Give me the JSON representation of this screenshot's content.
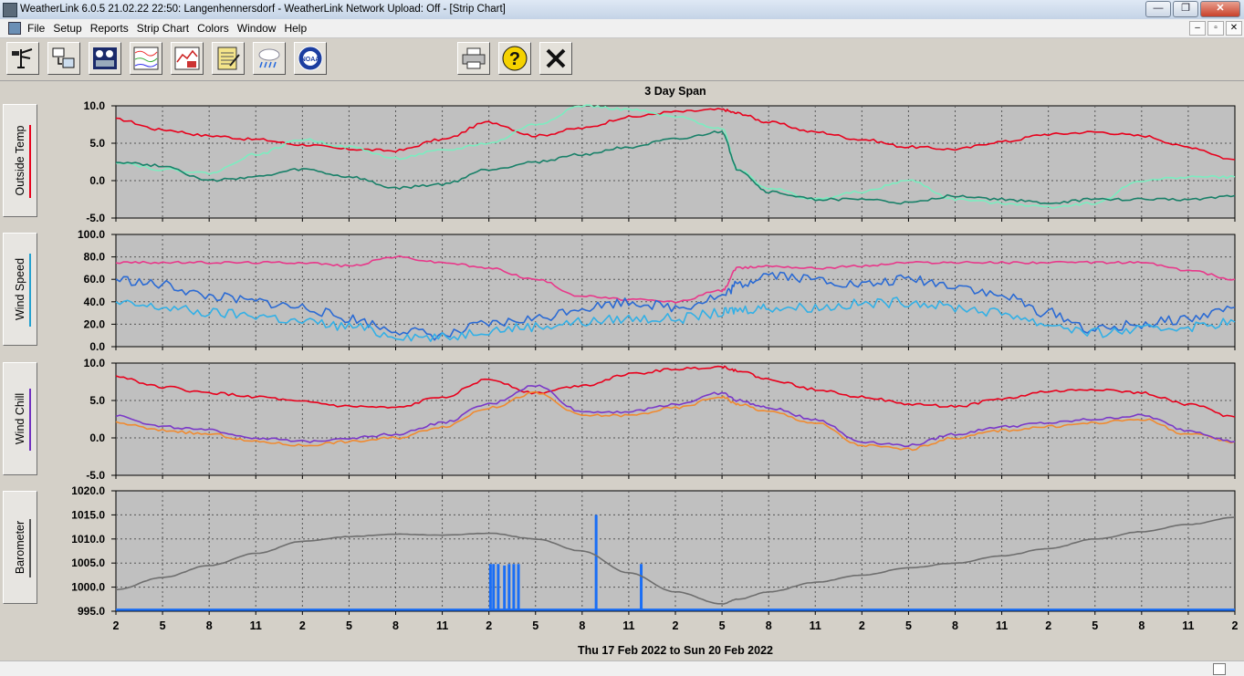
{
  "window": {
    "title": "WeatherLink 6.0.5  21.02.22  22:50: Langenhennersdorf - WeatherLink Network Upload: Off - [Strip Chart]",
    "controls": {
      "minimize": "—",
      "restore": "❐",
      "close": "✕"
    }
  },
  "menu": {
    "items": [
      "File",
      "Setup",
      "Reports",
      "Strip Chart",
      "Colors",
      "Window",
      "Help"
    ],
    "mdi_controls": [
      "–",
      "▫",
      "✕"
    ]
  },
  "toolbar": {
    "buttons": [
      {
        "name": "station-icon"
      },
      {
        "name": "download-icon"
      },
      {
        "name": "bulletin-icon"
      },
      {
        "name": "strip-chart-icon"
      },
      {
        "name": "plot-icon"
      },
      {
        "name": "notes-icon"
      },
      {
        "name": "weather-icon"
      },
      {
        "name": "noaa-icon",
        "text": "NOAA"
      },
      {
        "name": "print-icon"
      },
      {
        "name": "help-icon",
        "text": "?"
      },
      {
        "name": "close-icon",
        "text": "✕"
      }
    ]
  },
  "chart_data": {
    "type": "line",
    "title": "3 Day Span",
    "date_range": "Thu 17 Feb 2022  to  Sun 20 Feb 2022",
    "hours_span": [
      2,
      74
    ],
    "x_tick_labels": [
      "2",
      "5",
      "8",
      "11",
      "2",
      "5",
      "8",
      "11",
      "2",
      "5",
      "8",
      "11",
      "2",
      "5",
      "8",
      "11",
      "2",
      "5",
      "8",
      "11",
      "2",
      "5",
      "8",
      "11",
      "2"
    ],
    "colors": {
      "grid": "#555555",
      "background": "#c0c0c0"
    },
    "panels": [
      {
        "label": "Outside Temp",
        "label_color": "#e8001c",
        "ylim": [
          -5.0,
          10.0
        ],
        "yticks": [
          "10.0",
          "5.0",
          "0.0",
          "-5.0"
        ],
        "series": [
          {
            "color": "#e8001c",
            "x": [
              2,
              5,
              8,
              11,
              14,
              17,
              20,
              23,
              26,
              29,
              32,
              35,
              38,
              41,
              42,
              44,
              47,
              50,
              53,
              56,
              59,
              62,
              65,
              68,
              71,
              74
            ],
            "y": [
              8.2,
              6.8,
              6.0,
              5.5,
              4.8,
              4.2,
              4.0,
              5.5,
              7.8,
              6.0,
              7.0,
              8.5,
              9.2,
              9.5,
              9.0,
              7.8,
              6.5,
              5.5,
              4.5,
              4.2,
              5.2,
              6.2,
              6.5,
              6.0,
              4.5,
              2.8
            ]
          },
          {
            "color": "#7bedc0",
            "x": [
              2,
              5,
              8,
              11,
              14,
              17,
              20,
              23,
              26,
              29,
              32,
              35,
              38,
              41,
              42,
              44,
              47,
              50,
              53,
              56,
              59,
              62,
              65,
              68,
              71,
              74
            ],
            "y": [
              2.5,
              1.5,
              1.0,
              3.5,
              5.5,
              4.5,
              3.0,
              4.0,
              5.0,
              7.5,
              10.0,
              9.5,
              8.5,
              7.0,
              1.5,
              -1.0,
              -2.5,
              -1.5,
              0.0,
              -2.5,
              -3.0,
              -3.5,
              -3.0,
              0.0,
              0.5,
              0.5
            ]
          },
          {
            "color": "#188068",
            "x": [
              2,
              5,
              8,
              11,
              14,
              17,
              20,
              23,
              26,
              29,
              32,
              35,
              38,
              41,
              42,
              44,
              47,
              50,
              53,
              56,
              59,
              62,
              65,
              68,
              71,
              74
            ],
            "y": [
              2.5,
              2.0,
              0.0,
              0.5,
              1.5,
              0.5,
              -1.0,
              -0.5,
              1.5,
              2.5,
              3.5,
              4.5,
              5.5,
              6.5,
              1.5,
              -1.5,
              -2.5,
              -2.5,
              -3.0,
              -2.0,
              -2.5,
              -3.0,
              -2.5,
              -2.5,
              -2.5,
              -2.0
            ]
          }
        ]
      },
      {
        "label": "Wind Speed",
        "label_color": "#22a0d0",
        "ylim": [
          0.0,
          100.0
        ],
        "yticks": [
          "100.0",
          "80.0",
          "60.0",
          "40.0",
          "20.0",
          "0.0"
        ],
        "series": [
          {
            "color": "#e8388a",
            "x": [
              2,
              5,
              8,
              11,
              14,
              17,
              20,
              23,
              26,
              29,
              32,
              35,
              38,
              41,
              42,
              44,
              47,
              50,
              53,
              56,
              59,
              62,
              65,
              68,
              71,
              74
            ],
            "y": [
              75,
              75,
              75,
              75,
              75,
              72,
              80,
              75,
              70,
              60,
              45,
              42,
              40,
              50,
              70,
              72,
              70,
              72,
              75,
              75,
              75,
              75,
              75,
              75,
              68,
              60
            ]
          },
          {
            "color": "#2a6ad4",
            "x": [
              2,
              5,
              8,
              11,
              14,
              17,
              20,
              23,
              26,
              29,
              32,
              35,
              38,
              41,
              42,
              44,
              47,
              50,
              53,
              56,
              59,
              62,
              65,
              68,
              71,
              74
            ],
            "y": [
              60,
              55,
              45,
              40,
              35,
              25,
              15,
              10,
              20,
              25,
              35,
              40,
              35,
              45,
              55,
              65,
              60,
              55,
              60,
              55,
              45,
              30,
              15,
              20,
              25,
              35
            ]
          },
          {
            "color": "#32b0e6",
            "x": [
              2,
              5,
              8,
              11,
              14,
              17,
              20,
              23,
              26,
              29,
              32,
              35,
              38,
              41,
              42,
              44,
              47,
              50,
              53,
              56,
              59,
              62,
              65,
              68,
              71,
              74
            ],
            "y": [
              38,
              35,
              30,
              28,
              22,
              18,
              10,
              8,
              15,
              18,
              22,
              25,
              25,
              30,
              33,
              35,
              35,
              38,
              40,
              35,
              30,
              20,
              12,
              15,
              18,
              22
            ]
          }
        ]
      },
      {
        "label": "Wind Chill",
        "label_color": "#7030c0",
        "ylim": [
          -5.0,
          10.0
        ],
        "yticks": [
          "10.0",
          "5.0",
          "0.0",
          "-5.0"
        ],
        "series": [
          {
            "color": "#e8001c",
            "x": [
              2,
              5,
              8,
              11,
              14,
              17,
              20,
              23,
              26,
              29,
              32,
              35,
              38,
              41,
              42,
              44,
              47,
              50,
              53,
              56,
              59,
              62,
              65,
              68,
              71,
              74
            ],
            "y": [
              8.2,
              6.8,
              6.0,
              5.5,
              4.8,
              4.2,
              4.0,
              5.5,
              7.8,
              6.0,
              7.0,
              8.5,
              9.2,
              9.5,
              9.0,
              7.8,
              6.5,
              5.5,
              4.5,
              4.2,
              5.2,
              6.2,
              6.5,
              6.0,
              4.5,
              2.8
            ]
          },
          {
            "color": "#f08a30",
            "x": [
              2,
              5,
              8,
              11,
              14,
              17,
              20,
              23,
              26,
              29,
              32,
              35,
              38,
              41,
              42,
              44,
              47,
              50,
              53,
              56,
              59,
              62,
              65,
              68,
              71,
              74
            ],
            "y": [
              2.0,
              1.0,
              0.5,
              -0.5,
              -1.0,
              -0.5,
              0.0,
              1.5,
              4.0,
              6.0,
              3.0,
              3.0,
              4.0,
              5.5,
              4.5,
              3.5,
              2.0,
              -1.0,
              -1.5,
              0.0,
              1.0,
              1.5,
              2.0,
              2.5,
              0.5,
              -0.5
            ]
          },
          {
            "color": "#7a38c8",
            "x": [
              2,
              5,
              8,
              11,
              14,
              17,
              20,
              23,
              26,
              29,
              32,
              35,
              38,
              41,
              42,
              44,
              47,
              50,
              53,
              56,
              59,
              62,
              65,
              68,
              71,
              74
            ],
            "y": [
              3.0,
              1.5,
              1.0,
              0.0,
              -0.5,
              0.0,
              0.5,
              2.0,
              4.5,
              7.0,
              3.5,
              3.5,
              4.5,
              6.0,
              5.0,
              4.0,
              2.5,
              -0.5,
              -1.0,
              0.5,
              1.5,
              2.0,
              2.5,
              3.0,
              1.0,
              -0.5
            ]
          }
        ]
      },
      {
        "label": "Barometer",
        "label_color": "#555555",
        "ylim": [
          995.0,
          1020.0
        ],
        "yticks": [
          "1020.0",
          "1015.0",
          "1010.0",
          "1005.0",
          "1000.0",
          "995.0"
        ],
        "series": [
          {
            "color": "#6e6e6e",
            "x": [
              2,
              5,
              8,
              11,
              14,
              17,
              20,
              23,
              26,
              29,
              32,
              35,
              38,
              41,
              42,
              44,
              47,
              50,
              53,
              56,
              59,
              62,
              65,
              68,
              71,
              74
            ],
            "y": [
              999.5,
              1002,
              1004.5,
              1007,
              1009.5,
              1010.5,
              1011,
              1010.8,
              1011.2,
              1010,
              1007.5,
              1003,
              999,
              996.5,
              997.5,
              999,
              1001,
              1002.5,
              1004,
              1005,
              1006.5,
              1008,
              1010,
              1011.5,
              1013,
              1014.5
            ]
          }
        ],
        "bars": {
          "color": "#1a6ef5",
          "baseline": 995.3,
          "x": [
            26.1,
            26.3,
            26.6,
            27.0,
            27.3,
            27.6,
            27.9,
            32.9,
            35.8
          ],
          "y": [
            1004.8,
            1004.8,
            1004.8,
            1004.5,
            1004.8,
            1004.8,
            1004.8,
            1015.0,
            1004.8
          ]
        }
      }
    ]
  }
}
